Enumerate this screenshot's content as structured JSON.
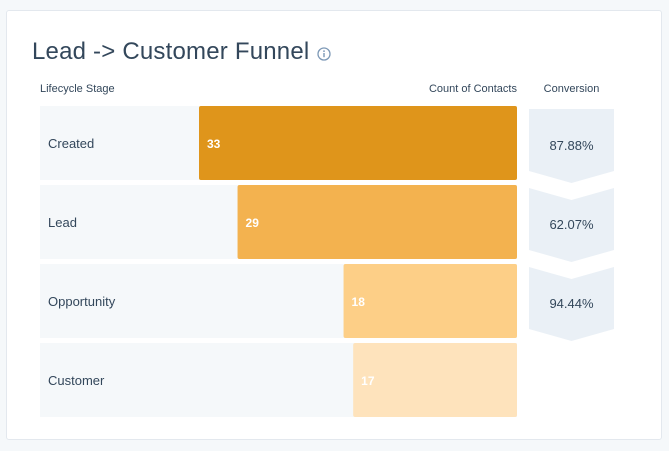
{
  "title": "Lead -> Customer Funnel",
  "icons": {
    "info": "info-icon"
  },
  "headers": {
    "stage": "Lifecycle Stage",
    "count": "Count of Contacts",
    "conversion": "Conversion"
  },
  "colors": {
    "row_bg": "#f5f8fa",
    "bars": [
      "#df951b",
      "#f3b24f",
      "#fdcf87",
      "#fee3bc"
    ],
    "conversion_bg": "#eaf0f6",
    "text": "#33475b"
  },
  "chart_data": {
    "type": "bar",
    "orientation": "horizontal-funnel",
    "categories": [
      "Created",
      "Lead",
      "Opportunity",
      "Customer"
    ],
    "values": [
      33,
      29,
      18,
      17
    ],
    "value_labels": [
      "33",
      "29",
      "18",
      "17"
    ],
    "conversions": [
      "87.88%",
      "62.07%",
      "94.44%"
    ],
    "xlim": [
      0,
      33
    ],
    "xlabel": "Count of Contacts",
    "ylabel": "Lifecycle Stage"
  }
}
